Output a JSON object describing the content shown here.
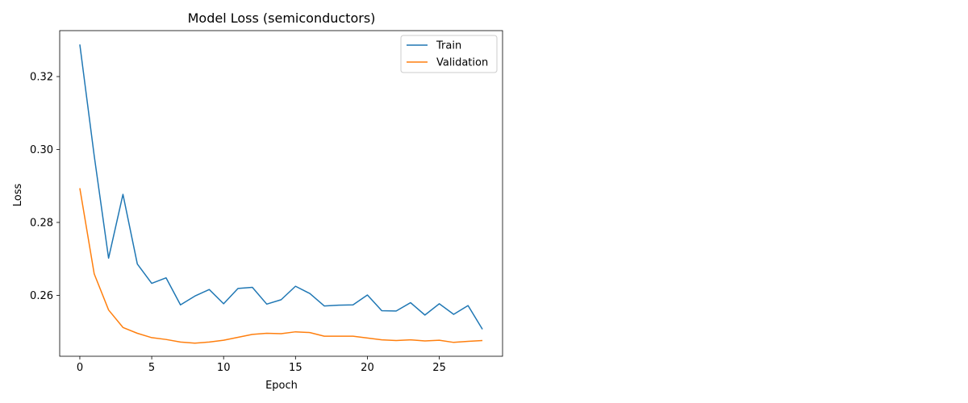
{
  "chart_data": {
    "type": "line",
    "title": "Model Loss (semiconductors)",
    "xlabel": "Epoch",
    "ylabel": "Loss",
    "xlim": [
      -1.4,
      29.4
    ],
    "ylim": [
      0.2433,
      0.3326
    ],
    "xticks": [
      0,
      5,
      10,
      15,
      20,
      25
    ],
    "yticks": [
      0.26,
      0.28,
      0.3,
      0.32
    ],
    "ytick_labels": [
      "0.26",
      "0.28",
      "0.30",
      "0.32"
    ],
    "grid": false,
    "legend_position": "top-right",
    "x": [
      0,
      1,
      2,
      3,
      4,
      5,
      6,
      7,
      8,
      9,
      10,
      11,
      12,
      13,
      14,
      15,
      16,
      17,
      18,
      19,
      20,
      21,
      22,
      23,
      24,
      25,
      26,
      27,
      28
    ],
    "series": [
      {
        "name": "Train",
        "color": "#1f77b4",
        "values": [
          0.3288,
          0.2983,
          0.2702,
          0.2877,
          0.2686,
          0.2633,
          0.2648,
          0.2574,
          0.2598,
          0.2616,
          0.2577,
          0.2619,
          0.2622,
          0.2576,
          0.2588,
          0.2625,
          0.2605,
          0.2571,
          0.2573,
          0.2574,
          0.2601,
          0.2558,
          0.2557,
          0.258,
          0.2546,
          0.2577,
          0.2548,
          0.2572,
          0.2507
        ]
      },
      {
        "name": "Validation",
        "color": "#ff7f0e",
        "values": [
          0.2894,
          0.2659,
          0.256,
          0.2512,
          0.2496,
          0.2484,
          0.2479,
          0.2472,
          0.2469,
          0.2472,
          0.2477,
          0.2485,
          0.2493,
          0.2496,
          0.2495,
          0.25,
          0.2498,
          0.2488,
          0.2488,
          0.2488,
          0.2483,
          0.2478,
          0.2476,
          0.2478,
          0.2475,
          0.2477,
          0.2471,
          0.2474,
          0.2476
        ]
      }
    ]
  }
}
